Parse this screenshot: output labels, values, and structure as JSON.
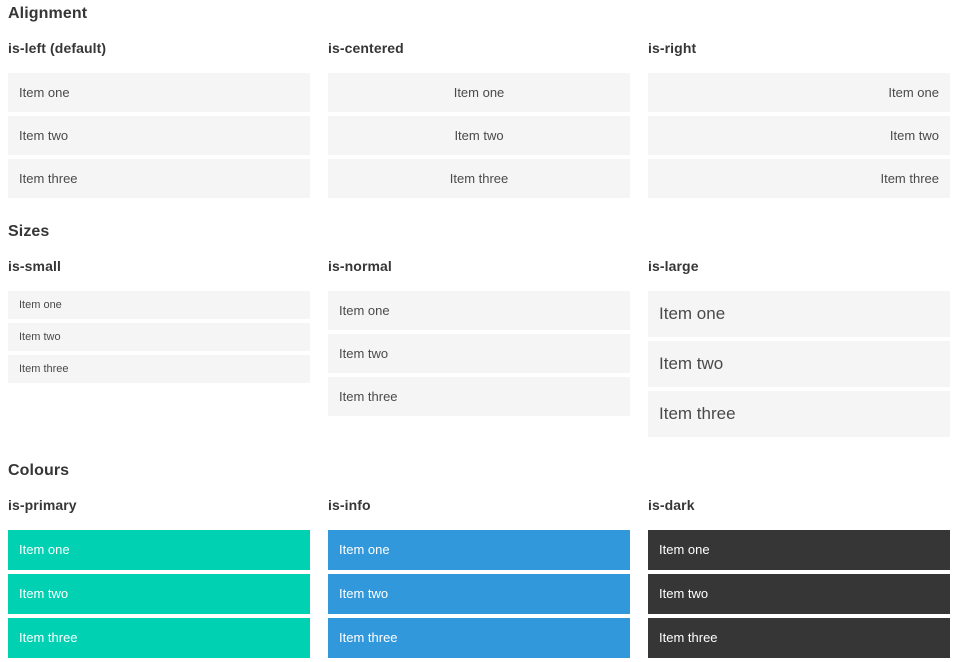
{
  "colors": {
    "primary": "#00d1b2",
    "info": "#3298dc",
    "dark": "#363636",
    "light_bg": "#f5f5f5",
    "text": "#4a4a4a",
    "heading": "#363636"
  },
  "sections": [
    {
      "title": "Alignment",
      "columns": [
        {
          "subtitle": "is-left (default)",
          "align": "left",
          "size": "normal",
          "variant": "light",
          "items": [
            "Item one",
            "Item two",
            "Item three"
          ]
        },
        {
          "subtitle": "is-centered",
          "align": "center",
          "size": "normal",
          "variant": "light",
          "items": [
            "Item one",
            "Item two",
            "Item three"
          ]
        },
        {
          "subtitle": "is-right",
          "align": "right",
          "size": "normal",
          "variant": "light",
          "items": [
            "Item one",
            "Item two",
            "Item three"
          ]
        }
      ]
    },
    {
      "title": "Sizes",
      "columns": [
        {
          "subtitle": "is-small",
          "align": "left",
          "size": "small",
          "variant": "light",
          "items": [
            "Item one",
            "Item two",
            "Item three"
          ]
        },
        {
          "subtitle": "is-normal",
          "align": "left",
          "size": "normal",
          "variant": "light",
          "items": [
            "Item one",
            "Item two",
            "Item three"
          ]
        },
        {
          "subtitle": "is-large",
          "align": "left",
          "size": "large",
          "variant": "light",
          "items": [
            "Item one",
            "Item two",
            "Item three"
          ]
        }
      ]
    },
    {
      "title": "Colours",
      "columns": [
        {
          "subtitle": "is-primary",
          "align": "left",
          "size": "normal",
          "variant": "primary",
          "items": [
            "Item one",
            "Item two",
            "Item three"
          ]
        },
        {
          "subtitle": "is-info",
          "align": "left",
          "size": "normal",
          "variant": "info",
          "items": [
            "Item one",
            "Item two",
            "Item three"
          ]
        },
        {
          "subtitle": "is-dark",
          "align": "left",
          "size": "normal",
          "variant": "dark",
          "items": [
            "Item one",
            "Item two",
            "Item three"
          ]
        }
      ]
    }
  ]
}
